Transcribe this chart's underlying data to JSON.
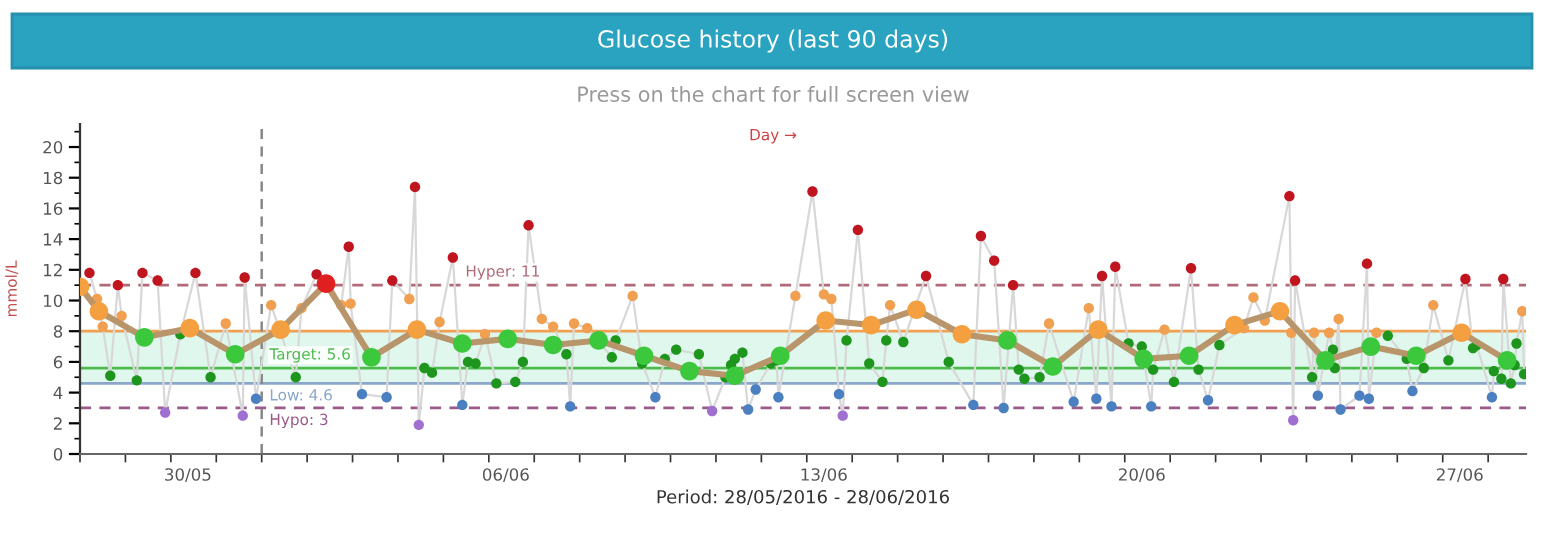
{
  "chart_data": {
    "type": "line",
    "title": "Glucose history (last 90 days)",
    "subtitle": "Press on the chart for full screen view",
    "xlabel": "Period: 28/05/2016 - 28/06/2016",
    "ylabel": "mmol/L",
    "annotations": [
      "Day →"
    ],
    "xlim": [
      "2016-05-28T00:00",
      "2016-06-28T20:00"
    ],
    "xticks": [
      {
        "value": "2016-05-28T00:00",
        "label": null
      },
      {
        "value": "2016-05-29T00:00",
        "label": null
      },
      {
        "value": "2016-05-30T00:00",
        "label": null
      },
      {
        "value": "2016-05-31T00:00",
        "label": null
      },
      {
        "value": "2016-06-01T00:00",
        "label": null
      },
      {
        "value": "2016-06-02T00:00",
        "label": null
      },
      {
        "value": "2016-06-03T00:00",
        "label": null
      },
      {
        "value": "2016-06-04T00:00",
        "label": null
      },
      {
        "value": "2016-06-05T00:00",
        "label": null
      },
      {
        "value": "2016-06-06T00:00",
        "label": null
      },
      {
        "value": "2016-06-07T00:00",
        "label": null
      },
      {
        "value": "2016-06-08T00:00",
        "label": null
      },
      {
        "value": "2016-06-09T00:00",
        "label": null
      },
      {
        "value": "2016-06-10T00:00",
        "label": null
      },
      {
        "value": "2016-06-11T00:00",
        "label": null
      },
      {
        "value": "2016-06-12T00:00",
        "label": null
      },
      {
        "value": "2016-06-13T00:00",
        "label": null
      },
      {
        "value": "2016-06-14T00:00",
        "label": null
      },
      {
        "value": "2016-06-15T00:00",
        "label": null
      },
      {
        "value": "2016-06-16T00:00",
        "label": null
      },
      {
        "value": "2016-06-17T00:00",
        "label": null
      },
      {
        "value": "2016-06-18T00:00",
        "label": null
      },
      {
        "value": "2016-06-19T00:00",
        "label": null
      },
      {
        "value": "2016-06-20T00:00",
        "label": null
      },
      {
        "value": "2016-06-21T00:00",
        "label": null
      },
      {
        "value": "2016-06-22T00:00",
        "label": null
      },
      {
        "value": "2016-06-23T00:00",
        "label": null
      },
      {
        "value": "2016-06-24T00:00",
        "label": null
      },
      {
        "value": "2016-06-25T00:00",
        "label": null
      },
      {
        "value": "2016-06-26T00:00",
        "label": null
      },
      {
        "value": "2016-06-27T00:00",
        "label": null
      },
      {
        "value": "2016-06-28T00:00",
        "label": null
      },
      {
        "value": "2016-05-30T09:00",
        "label": "30/05"
      },
      {
        "value": "2016-06-06T09:00",
        "label": "06/06"
      },
      {
        "value": "2016-06-13T09:00",
        "label": "13/06"
      },
      {
        "value": "2016-06-20T09:00",
        "label": "20/06"
      },
      {
        "value": "2016-06-27T09:00",
        "label": "27/06"
      }
    ],
    "ylim": [
      0,
      21.5
    ],
    "yticks": [
      0,
      {
        "value": 1,
        "label": null
      },
      2,
      {
        "value": 3,
        "label": null
      },
      4,
      {
        "value": 5,
        "label": null
      },
      6,
      {
        "value": 7,
        "label": null
      },
      8,
      {
        "value": 9,
        "label": null
      },
      10,
      {
        "value": 11,
        "label": null
      },
      12,
      {
        "value": 13,
        "label": null
      },
      14,
      {
        "value": 15,
        "label": null
      },
      16,
      {
        "value": 17,
        "label": null
      },
      18,
      {
        "value": 19,
        "label": null
      },
      20,
      {
        "value": 21,
        "label": null
      }
    ],
    "grid": false,
    "legend": false,
    "marker": "circle",
    "line_style": "solid",
    "bands": [
      {
        "axis": "y",
        "from": 4.6,
        "to": 8,
        "color": "#dff7ec"
      }
    ],
    "ref_lines": [
      {
        "axis": "y",
        "value": 11,
        "label": "Hyper: 11",
        "color": "#b06a78",
        "line_style": "dashed"
      },
      {
        "axis": "y",
        "value": 8,
        "color": "#f0a050",
        "line_style": "solid"
      },
      {
        "axis": "y",
        "value": 5.6,
        "label": "Target: 5.6",
        "color": "#4cbb4c",
        "line_style": "solid"
      },
      {
        "axis": "y",
        "value": 4.6,
        "label": "Low: 4.6",
        "color": "#8aa6c8",
        "line_style": "solid"
      },
      {
        "axis": "y",
        "value": 3,
        "label": "Hypo: 3",
        "color": "#9a5a8a",
        "line_style": "dashed"
      },
      {
        "axis": "x",
        "value": "2016-06-01T00:00",
        "color": "#888888",
        "line_style": "dashed"
      }
    ],
    "series": [
      {
        "type": "line",
        "color": "#d8d8d8",
        "x": [
          "2016-05-28T05:00",
          "2016-05-28T09:00",
          "2016-05-28T12:00",
          "2016-05-28T16:00",
          "2016-05-28T20:00",
          "2016-05-28T22:00",
          "2016-05-29T06:00",
          "2016-05-29T09:00",
          "2016-05-29T17:00",
          "2016-05-29T21:00",
          "2016-05-30T05:00",
          "2016-05-30T13:00",
          "2016-05-30T21:00",
          "2016-05-31T05:00",
          "2016-05-31T14:00",
          "2016-05-31T15:00",
          "2016-05-31T21:00",
          "2016-06-01T05:00",
          "2016-06-01T18:00",
          "2016-06-01T21:00",
          "2016-06-02T05:00",
          "2016-06-02T11:00",
          "2016-06-02T18:00",
          "2016-06-02T22:00",
          "2016-06-02T23:00",
          "2016-06-03T05:00",
          "2016-06-03T18:00",
          "2016-06-03T21:00",
          "2016-06-04T06:00",
          "2016-06-04T09:00",
          "2016-06-04T11:00",
          "2016-06-04T14:00",
          "2016-06-04T18:00",
          "2016-06-04T22:00",
          "2016-06-05T05:00",
          "2016-06-05T10:00",
          "2016-06-05T13:00",
          "2016-06-05T17:00",
          "2016-06-05T22:00",
          "2016-06-06T04:00",
          "2016-06-06T14:00",
          "2016-06-06T18:00",
          "2016-06-06T21:00",
          "2016-06-07T04:00",
          "2016-06-07T10:00",
          "2016-06-07T17:00",
          "2016-06-07T19:00",
          "2016-06-07T21:00",
          "2016-06-08T04:00",
          "2016-06-08T17:00",
          "2016-06-08T19:00",
          "2016-06-09T04:00",
          "2016-06-09T09:00",
          "2016-06-09T16:00",
          "2016-06-09T21:00",
          "2016-06-10T03:00",
          "2016-06-10T15:00",
          "2016-06-10T22:00",
          "2016-06-11T05:00",
          "2016-06-11T08:00",
          "2016-06-11T10:00",
          "2016-06-11T14:00",
          "2016-06-11T17:00",
          "2016-06-11T21:00",
          "2016-06-12T05:00",
          "2016-06-12T08:00",
          "2016-06-12T09:00",
          "2016-06-12T18:00",
          "2016-06-13T03:00",
          "2016-06-13T09:00",
          "2016-06-13T13:00",
          "2016-06-13T17:00",
          "2016-06-13T19:00",
          "2016-06-13T21:00",
          "2016-06-14T03:00",
          "2016-06-14T09:00",
          "2016-06-14T16:00",
          "2016-06-14T18:00",
          "2016-06-14T20:00",
          "2016-06-15T03:00",
          "2016-06-15T15:00",
          "2016-06-16T03:00",
          "2016-06-16T16:00",
          "2016-06-16T20:00",
          "2016-06-17T03:00",
          "2016-06-17T08:00",
          "2016-06-17T13:00",
          "2016-06-17T16:00",
          "2016-06-17T19:00",
          "2016-06-18T03:00",
          "2016-06-18T08:00",
          "2016-06-18T21:00",
          "2016-06-19T05:00",
          "2016-06-19T09:00",
          "2016-06-19T12:00",
          "2016-06-19T17:00",
          "2016-06-19T19:00",
          "2016-06-20T02:00",
          "2016-06-20T09:00",
          "2016-06-20T14:00",
          "2016-06-20T15:00",
          "2016-06-20T21:00",
          "2016-06-21T02:00",
          "2016-06-21T11:00",
          "2016-06-21T15:00",
          "2016-06-21T20:00",
          "2016-06-22T02:00",
          "2016-06-22T15:00",
          "2016-06-22T20:00",
          "2016-06-23T02:00",
          "2016-06-23T15:00",
          "2016-06-23T16:00",
          "2016-06-23T17:00",
          "2016-06-23T18:00",
          "2016-06-24T03:00",
          "2016-06-24T04:00",
          "2016-06-24T06:00",
          "2016-06-24T12:00",
          "2016-06-24T14:00",
          "2016-06-24T15:00",
          "2016-06-24T17:00",
          "2016-06-24T18:00",
          "2016-06-25T04:00",
          "2016-06-25T08:00",
          "2016-06-25T09:00",
          "2016-06-25T13:00",
          "2016-06-25T19:00",
          "2016-06-26T05:00",
          "2016-06-26T08:00",
          "2016-06-26T14:00",
          "2016-06-26T19:00",
          "2016-06-27T03:00",
          "2016-06-27T12:00",
          "2016-06-27T16:00",
          "2016-06-27T18:00",
          "2016-06-28T02:00",
          "2016-06-28T03:00",
          "2016-06-28T07:00",
          "2016-06-28T08:00",
          "2016-06-28T12:00",
          "2016-06-28T14:00",
          "2016-06-28T15:00",
          "2016-06-28T18:00",
          "2016-06-28T19:00"
        ],
        "values": [
          11.8,
          10.1,
          8.3,
          5.1,
          11.0,
          9.0,
          4.8,
          11.8,
          11.3,
          2.7,
          7.8,
          11.8,
          5.0,
          8.5,
          2.5,
          11.5,
          3.6,
          9.7,
          5.0,
          9.5,
          11.7,
          11.3,
          9.7,
          13.5,
          9.8,
          3.9,
          3.7,
          11.3,
          10.1,
          17.4,
          1.9,
          5.6,
          5.3,
          8.6,
          12.8,
          3.2,
          6.0,
          5.9,
          7.8,
          4.6,
          4.7,
          6.0,
          14.9,
          8.8,
          8.3,
          6.5,
          3.1,
          8.5,
          8.2,
          6.3,
          7.4,
          10.3,
          5.9,
          3.7,
          6.2,
          6.8,
          6.5,
          2.8,
          5.0,
          5.8,
          6.2,
          6.6,
          2.9,
          4.2,
          5.9,
          6.1,
          3.7,
          10.3,
          17.1,
          10.4,
          10.1,
          3.9,
          2.5,
          7.4,
          14.6,
          5.9,
          4.7,
          7.4,
          9.7,
          7.3,
          11.6,
          6.0,
          3.2,
          14.2,
          12.6,
          3.0,
          11.0,
          5.5,
          4.9,
          5.0,
          8.5,
          3.4,
          9.5,
          3.6,
          11.6,
          3.1,
          12.2,
          7.2,
          7.0,
          3.1,
          5.5,
          8.1,
          4.7,
          12.1,
          5.5,
          3.5,
          7.1,
          8.2,
          10.2,
          8.7,
          16.8,
          7.9,
          2.2,
          11.3,
          5.0,
          7.9,
          3.8,
          7.9,
          6.8,
          5.6,
          8.8,
          2.9,
          3.8,
          12.4,
          3.6,
          7.9,
          7.7,
          6.2,
          4.1,
          5.6,
          9.7,
          6.1,
          11.4,
          6.9,
          7.1,
          3.7,
          5.4,
          4.9,
          11.4,
          4.6,
          5.8,
          7.2,
          9.3,
          5.2
        ],
        "colors": [
          "#c0141e",
          "#f0a050",
          "#f0a050",
          "#1e961e",
          "#c0141e",
          "#f0a050",
          "#1e961e",
          "#c0141e",
          "#c0141e",
          "#a070d0",
          "#1e961e",
          "#c0141e",
          "#1e961e",
          "#f0a050",
          "#a070d0",
          "#c0141e",
          "#4a7fc0",
          "#f0a050",
          "#1e961e",
          "#f0a050",
          "#c0141e",
          "#c0141e",
          "#f0a050",
          "#c0141e",
          "#f0a050",
          "#4a7fc0",
          "#4a7fc0",
          "#c0141e",
          "#f0a050",
          "#c0141e",
          "#a070d0",
          "#1e961e",
          "#1e961e",
          "#f0a050",
          "#c0141e",
          "#4a7fc0",
          "#1e961e",
          "#1e961e",
          "#f0a050",
          "#1e961e",
          "#1e961e",
          "#1e961e",
          "#c0141e",
          "#f0a050",
          "#f0a050",
          "#1e961e",
          "#4a7fc0",
          "#f0a050",
          "#f0a050",
          "#1e961e",
          "#1e961e",
          "#f0a050",
          "#1e961e",
          "#4a7fc0",
          "#1e961e",
          "#1e961e",
          "#1e961e",
          "#a070d0",
          "#1e961e",
          "#1e961e",
          "#1e961e",
          "#1e961e",
          "#4a7fc0",
          "#4a7fc0",
          "#1e961e",
          "#1e961e",
          "#4a7fc0",
          "#f0a050",
          "#c0141e",
          "#f0a050",
          "#f0a050",
          "#4a7fc0",
          "#a070d0",
          "#1e961e",
          "#c0141e",
          "#1e961e",
          "#1e961e",
          "#1e961e",
          "#f0a050",
          "#1e961e",
          "#c0141e",
          "#1e961e",
          "#4a7fc0",
          "#c0141e",
          "#c0141e",
          "#4a7fc0",
          "#c0141e",
          "#1e961e",
          "#1e961e",
          "#1e961e",
          "#f0a050",
          "#4a7fc0",
          "#f0a050",
          "#4a7fc0",
          "#c0141e",
          "#4a7fc0",
          "#c0141e",
          "#1e961e",
          "#1e961e",
          "#4a7fc0",
          "#1e961e",
          "#f0a050",
          "#1e961e",
          "#c0141e",
          "#1e961e",
          "#4a7fc0",
          "#1e961e",
          "#f0a050",
          "#f0a050",
          "#f0a050",
          "#c0141e",
          "#f0a050",
          "#a070d0",
          "#c0141e",
          "#1e961e",
          "#f0a050",
          "#4a7fc0",
          "#f0a050",
          "#1e961e",
          "#1e961e",
          "#f0a050",
          "#4a7fc0",
          "#4a7fc0",
          "#c0141e",
          "#4a7fc0",
          "#f0a050",
          "#1e961e",
          "#1e961e",
          "#4a7fc0",
          "#1e961e",
          "#f0a050",
          "#1e961e",
          "#c0141e",
          "#1e961e",
          "#1e961e",
          "#4a7fc0",
          "#1e961e",
          "#1e961e",
          "#c0141e",
          "#1e961e",
          "#1e961e",
          "#1e961e",
          "#f0a050",
          "#1e961e"
        ]
      },
      {
        "type": "line",
        "color": "#b8956a",
        "x": [
          "2016-05-28T00:00",
          "2016-05-28T10:00",
          "2016-05-29T10:00",
          "2016-05-30T10:00",
          "2016-05-31T10:00",
          "2016-06-01T10:00",
          "2016-06-02T10:00",
          "2016-06-03T10:00",
          "2016-06-04T10:00",
          "2016-06-05T10:00",
          "2016-06-06T10:00",
          "2016-06-07T10:00",
          "2016-06-08T10:00",
          "2016-06-09T10:00",
          "2016-06-10T10:00",
          "2016-06-11T10:00",
          "2016-06-12T10:00",
          "2016-06-13T10:00",
          "2016-06-14T10:00",
          "2016-06-15T10:00",
          "2016-06-16T10:00",
          "2016-06-17T10:00",
          "2016-06-18T10:00",
          "2016-06-19T10:00",
          "2016-06-20T10:00",
          "2016-06-21T10:00",
          "2016-06-22T10:00",
          "2016-06-23T10:00",
          "2016-06-24T10:00",
          "2016-06-25T10:00",
          "2016-06-26T10:00",
          "2016-06-27T10:00",
          "2016-06-28T10:00"
        ],
        "values": [
          10.9,
          9.3,
          7.6,
          8.2,
          6.5,
          8.1,
          11.1,
          6.3,
          8.1,
          7.2,
          7.5,
          7.1,
          7.4,
          6.4,
          5.4,
          5.1,
          6.4,
          8.7,
          8.4,
          9.4,
          7.8,
          7.4,
          5.7,
          8.1,
          6.2,
          6.4,
          8.4,
          9.3,
          6.1,
          7.0,
          6.4,
          7.9,
          6.1
        ],
        "colors": [
          "#f5a040",
          "#f5a040",
          "#3cc83c",
          "#f5a040",
          "#3cc83c",
          "#f5a040",
          "#e02020",
          "#3cc83c",
          "#f5a040",
          "#3cc83c",
          "#3cc83c",
          "#3cc83c",
          "#3cc83c",
          "#3cc83c",
          "#3cc83c",
          "#3cc83c",
          "#3cc83c",
          "#f5a040",
          "#f5a040",
          "#f5a040",
          "#f5a040",
          "#3cc83c",
          "#3cc83c",
          "#f5a040",
          "#3cc83c",
          "#3cc83c",
          "#f5a040",
          "#f5a040",
          "#3cc83c",
          "#3cc83c",
          "#3cc83c",
          "#f5a040",
          "#3cc83c"
        ]
      }
    ]
  }
}
